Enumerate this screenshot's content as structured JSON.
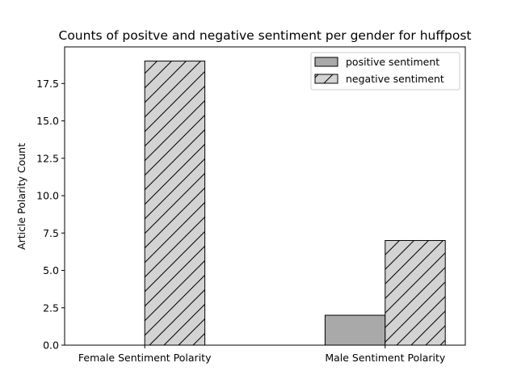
{
  "chart_data": {
    "type": "bar",
    "title": "Counts of positve and negative sentiment per gender for huffpost",
    "xlabel": "",
    "ylabel": "Article Polarity Count",
    "categories": [
      "Female Sentiment Polarity",
      "Male Sentiment Polarity"
    ],
    "series": [
      {
        "name": "positive sentiment",
        "values": [
          0,
          2
        ],
        "color": "#a9a9a9",
        "hatch": "none"
      },
      {
        "name": "negative sentiment",
        "values": [
          19,
          7
        ],
        "color": "#d3d3d3",
        "hatch": "diagonal"
      }
    ],
    "ylim": [
      0,
      19.95
    ],
    "yticks": [
      0.0,
      2.5,
      5.0,
      7.5,
      10.0,
      12.5,
      15.0,
      17.5
    ],
    "ytick_labels": [
      "0.0",
      "2.5",
      "5.0",
      "7.5",
      "10.0",
      "12.5",
      "15.0",
      "17.5"
    ],
    "legend_position": "upper-right",
    "grid": false
  }
}
